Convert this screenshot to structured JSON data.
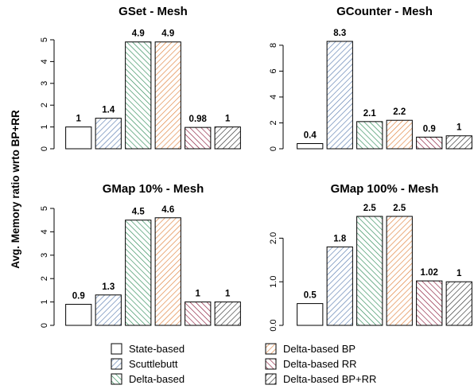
{
  "ylabel": "Avg. Memory ratio wrto BP+RR",
  "legend": {
    "placement": "bottom",
    "entries": [
      {
        "name": "State-based",
        "color": "#ffffff",
        "stroke": "#000000",
        "pattern": "none"
      },
      {
        "name": "Scuttlebutt",
        "color": "#5b7db0",
        "stroke": "#5b7db0",
        "pattern": "hatch-right"
      },
      {
        "name": "Delta-based",
        "color": "#2e8b57",
        "stroke": "#2e8b57",
        "pattern": "hatch-left"
      },
      {
        "name": "Delta-based BP",
        "color": "#e0803a",
        "stroke": "#e0803a",
        "pattern": "hatch-right"
      },
      {
        "name": "Delta-based RR",
        "color": "#8b1a3a",
        "stroke": "#8b1a3a",
        "pattern": "hatch-left"
      },
      {
        "name": "Delta-based BP+RR",
        "color": "#333333",
        "stroke": "#333333",
        "pattern": "hatch-right"
      }
    ]
  },
  "chart_data": [
    {
      "type": "bar",
      "title": "GSet - Mesh",
      "categories": [
        "State-based",
        "Scuttlebutt",
        "Delta-based",
        "Delta-based BP",
        "Delta-based RR",
        "Delta-based BP+RR"
      ],
      "values": [
        1,
        1.4,
        4.9,
        4.9,
        0.98,
        1
      ],
      "value_labels": [
        "1",
        "1.4",
        "4.9",
        "4.9",
        "0.98",
        "1"
      ],
      "ylim": [
        0,
        5
      ],
      "yticks": [
        0,
        1,
        2,
        3,
        4,
        5
      ],
      "ytick_labels": [
        "0",
        "1",
        "2",
        "3",
        "4",
        "5"
      ],
      "grid": false
    },
    {
      "type": "bar",
      "title": "GCounter - Mesh",
      "categories": [
        "State-based",
        "Scuttlebutt",
        "Delta-based",
        "Delta-based BP",
        "Delta-based RR",
        "Delta-based BP+RR"
      ],
      "values": [
        0.4,
        8.3,
        2.1,
        2.2,
        0.9,
        1
      ],
      "value_labels": [
        "0.4",
        "8.3",
        "2.1",
        "2.2",
        "0.9",
        "1"
      ],
      "ylim": [
        0,
        8.3
      ],
      "yticks": [
        0,
        2,
        4,
        6,
        8
      ],
      "ytick_labels": [
        "0",
        "2",
        "4",
        "6",
        "8"
      ],
      "grid": false
    },
    {
      "type": "bar",
      "title": "GMap 10% - Mesh",
      "categories": [
        "State-based",
        "Scuttlebutt",
        "Delta-based",
        "Delta-based BP",
        "Delta-based RR",
        "Delta-based BP+RR"
      ],
      "values": [
        0.9,
        1.3,
        4.5,
        4.6,
        1,
        1
      ],
      "value_labels": [
        "0.9",
        "1.3",
        "4.5",
        "4.6",
        "1",
        "1"
      ],
      "ylim": [
        0,
        5
      ],
      "yticks": [
        0,
        1,
        2,
        3,
        4,
        5
      ],
      "ytick_labels": [
        "0",
        "1",
        "2",
        "3",
        "4",
        "5"
      ],
      "grid": false
    },
    {
      "type": "bar",
      "title": "GMap 100% - Mesh",
      "categories": [
        "State-based",
        "Scuttlebutt",
        "Delta-based",
        "Delta-based BP",
        "Delta-based RR",
        "Delta-based BP+RR"
      ],
      "values": [
        0.5,
        1.8,
        2.5,
        2.5,
        1.02,
        1
      ],
      "value_labels": [
        "0.5",
        "1.8",
        "2.5",
        "2.5",
        "1.02",
        "1"
      ],
      "ylim": [
        0,
        2.5
      ],
      "yticks": [
        0,
        1,
        2
      ],
      "ytick_labels": [
        "0.0",
        "1.0",
        "2.0"
      ],
      "grid": false
    }
  ]
}
